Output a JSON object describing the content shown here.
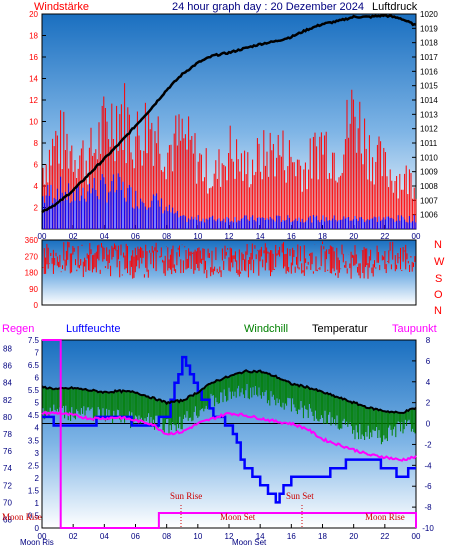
{
  "header": {
    "left_label": "Windstärke",
    "title": "24 hour graph day : 20 Dezember 2024",
    "right_label": "Luftdruck"
  },
  "wind_dir_labels": [
    "N",
    "W",
    "S",
    "O",
    "N"
  ],
  "bottom_legend": {
    "regen": "Regen",
    "luftfeuchte": "Luftfeuchte",
    "windchill": "Windchill",
    "temperatur": "Temperatur",
    "taupunkt": "Taupunkt"
  },
  "annotations": {
    "moon_rise_1": "Moon Rise",
    "sun_rise": "Sun Rise",
    "moon_set_mid": "Moon Set",
    "sun_set": "Sun Set",
    "moon_rise_2": "Moon Rise"
  },
  "bottom_axis_labels": {
    "left": "Moon Ris",
    "mid": "Moon Set"
  },
  "colors": {
    "wind_red": "#ff0000",
    "gust_blue": "#0000ff",
    "pressure_black": "#000000",
    "windchill_green": "#008000",
    "temperature_black": "#000000",
    "dewpoint_magenta": "#ff00ff",
    "humidity_blue": "#0000ff",
    "rain_magenta": "#ff00ff",
    "sky_top": "#1a6fc0",
    "sky_bottom": "#ffffff",
    "axis_text": "#000080"
  },
  "chart_data": [
    {
      "type": "line",
      "title": "24 hour graph day : 20 Dezember 2024",
      "x_ticks": [
        "00",
        "02",
        "04",
        "06",
        "08",
        "10",
        "12",
        "14",
        "16",
        "18",
        "20",
        "22",
        "00"
      ],
      "y_left": {
        "label": "Windstärke",
        "lim": [
          0,
          20
        ],
        "ticks": [
          2,
          4,
          6,
          8,
          10,
          12,
          14,
          16,
          18,
          20
        ]
      },
      "y_right": {
        "label": "Luftdruck",
        "lim": [
          1005,
          1020
        ],
        "ticks": [
          1006,
          1007,
          1008,
          1009,
          1010,
          1011,
          1012,
          1013,
          1014,
          1015,
          1016,
          1017,
          1018,
          1019,
          1020
        ]
      },
      "series": [
        {
          "name": "Luftdruck",
          "x": [
            0,
            1,
            2,
            3,
            4,
            5,
            6,
            7,
            8,
            9,
            10,
            11,
            12,
            13,
            14,
            15,
            16,
            17,
            18,
            19,
            20,
            21,
            22,
            23,
            24
          ],
          "values": [
            1006.2,
            1006.8,
            1007.7,
            1008.8,
            1009.9,
            1011.0,
            1012.2,
            1013.4,
            1014.7,
            1015.8,
            1016.6,
            1017.1,
            1017.3,
            1017.6,
            1017.9,
            1018.1,
            1018.4,
            1018.9,
            1019.3,
            1019.5,
            1019.8,
            1019.8,
            1019.9,
            1019.7,
            1019.2
          ]
        },
        {
          "name": "Windstärke",
          "x": [
            0,
            1,
            2,
            3,
            4,
            5,
            6,
            7,
            8,
            9,
            10,
            11,
            12,
            13,
            14,
            15,
            16,
            17,
            18,
            19,
            20,
            21,
            22,
            23,
            24
          ],
          "values": [
            6,
            9,
            8,
            7,
            10,
            12,
            9,
            11,
            8,
            9,
            7,
            5,
            8,
            6,
            7,
            8,
            7,
            6,
            9,
            7,
            12,
            8,
            6,
            5,
            5
          ]
        },
        {
          "name": "Böen",
          "x": [
            0,
            1,
            2,
            3,
            4,
            5,
            6,
            7,
            8,
            9,
            10,
            11,
            12,
            13,
            14,
            15,
            16,
            17,
            18,
            19,
            20,
            21,
            22,
            23,
            24
          ],
          "values": [
            3,
            4,
            3,
            4,
            4,
            4,
            3,
            3,
            2,
            1,
            1,
            1,
            1,
            1,
            1,
            1,
            1,
            1,
            1,
            1,
            1,
            1,
            1,
            1,
            1
          ]
        }
      ]
    },
    {
      "type": "scatter",
      "x_ticks": [
        "00",
        "02",
        "04",
        "06",
        "08",
        "10",
        "12",
        "14",
        "16",
        "18",
        "20",
        "22",
        "00"
      ],
      "y_left": {
        "lim": [
          0,
          360
        ],
        "ticks": [
          0,
          90,
          180,
          270,
          360
        ]
      },
      "y_right_labels": [
        "N",
        "W",
        "S",
        "O",
        "N"
      ],
      "series": [
        {
          "name": "Windrichtung",
          "x": [
            0,
            2,
            4,
            6,
            8,
            10,
            12,
            14,
            16,
            18,
            20,
            22,
            24
          ],
          "values": [
            270,
            250,
            260,
            240,
            260,
            250,
            240,
            260,
            250,
            260,
            240,
            250,
            260
          ]
        }
      ]
    },
    {
      "type": "line",
      "x_ticks": [
        "00",
        "02",
        "04",
        "06",
        "08",
        "10",
        "12",
        "14",
        "16",
        "18",
        "20",
        "22",
        "00"
      ],
      "y_left_humidity": {
        "label": "Luftfeuchte",
        "lim": [
          67,
          89
        ],
        "ticks": [
          68,
          70,
          72,
          74,
          76,
          78,
          80,
          82,
          84,
          86,
          88
        ]
      },
      "y_left_rain": {
        "label": "Regen",
        "lim": [
          0,
          7.5
        ],
        "ticks": [
          0,
          0.5,
          1,
          1.5,
          2,
          2.5,
          3,
          3.5,
          4,
          4.5,
          5,
          5.5,
          6,
          6.5,
          7,
          7.5
        ]
      },
      "y_right_temp": {
        "lim": [
          -10,
          8
        ],
        "ticks": [
          -10,
          -8,
          -6,
          -4,
          -2,
          0,
          2,
          4,
          6,
          8
        ]
      },
      "series": [
        {
          "name": "Temperatur",
          "x": [
            0,
            1,
            2,
            3,
            4,
            5,
            6,
            7,
            8,
            9,
            10,
            11,
            12,
            13,
            14,
            15,
            16,
            17,
            18,
            19,
            20,
            21,
            22,
            23,
            24
          ],
          "values": [
            3.5,
            3.3,
            3.4,
            3.2,
            3.0,
            3.1,
            3.0,
            2.5,
            2.0,
            2.2,
            3.0,
            4.0,
            4.5,
            5.0,
            5.0,
            4.5,
            3.8,
            3.5,
            3.0,
            2.5,
            2.0,
            1.5,
            1.2,
            1.0,
            1.5
          ]
        },
        {
          "name": "Windchill",
          "x": [
            0,
            1,
            2,
            3,
            4,
            5,
            6,
            7,
            8,
            9,
            10,
            11,
            12,
            13,
            14,
            15,
            16,
            17,
            18,
            19,
            20,
            21,
            22,
            23,
            24
          ],
          "values": [
            2.0,
            2.0,
            1.8,
            1.8,
            1.5,
            1.5,
            1.0,
            1.0,
            0.5,
            1.0,
            2.0,
            3.0,
            3.5,
            4.0,
            3.5,
            3.0,
            2.5,
            2.0,
            1.5,
            1.0,
            0.0,
            0.0,
            -0.5,
            0.5,
            0.5
          ]
        },
        {
          "name": "Taupunkt",
          "x": [
            0,
            1,
            2,
            3,
            4,
            5,
            6,
            7,
            8,
            9,
            10,
            11,
            12,
            13,
            14,
            15,
            16,
            17,
            18,
            19,
            20,
            21,
            22,
            23,
            24
          ],
          "values": [
            1.0,
            1.0,
            0.8,
            0.5,
            0.5,
            0.6,
            0.3,
            0.0,
            -1.0,
            -0.8,
            0.0,
            0.5,
            1.0,
            0.8,
            0.5,
            0.2,
            0.0,
            -0.5,
            -1.5,
            -2.0,
            -2.5,
            -3.0,
            -3.2,
            -3.5,
            -3.2
          ]
        },
        {
          "name": "Luftfeuchte",
          "x": [
            0,
            1,
            2,
            3,
            4,
            5,
            6,
            7,
            8,
            9,
            10,
            11,
            12,
            13,
            14,
            15,
            16,
            17,
            18,
            19,
            20,
            21,
            22,
            23,
            24
          ],
          "values": [
            80,
            79,
            79,
            79,
            80,
            80,
            79,
            79,
            80,
            87,
            83,
            80,
            79,
            74,
            72,
            70,
            73,
            73,
            73,
            74,
            75,
            75,
            74,
            73,
            74
          ]
        },
        {
          "name": "Regen",
          "x": [
            0,
            1,
            2,
            3,
            4,
            5,
            6,
            7,
            8,
            9,
            10,
            11,
            12,
            13,
            14,
            15,
            16,
            17,
            18,
            19,
            20,
            21,
            22,
            23,
            24
          ],
          "values": [
            7.5,
            0,
            0,
            0,
            0,
            0,
            0,
            0,
            0.6,
            0.6,
            0.6,
            0.6,
            0.6,
            0.6,
            0.6,
            0.6,
            0.6,
            0.6,
            0.6,
            0.6,
            0.6,
            0.6,
            0.6,
            0.6,
            0.6
          ]
        }
      ]
    }
  ]
}
